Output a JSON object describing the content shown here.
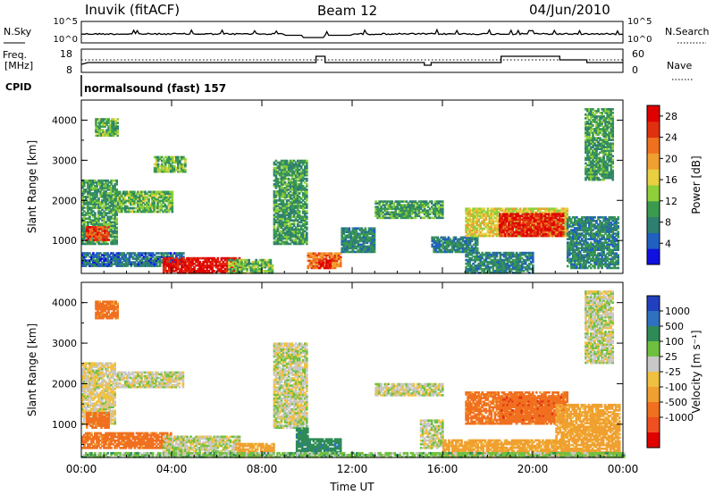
{
  "header": {
    "station": "Inuvik (fitACF)",
    "beam": "Beam 12",
    "date": "04/Jun/2010"
  },
  "noise_panel": {
    "left_label": "N.Sky",
    "right_label": "N.Search",
    "tick_top": "10^5",
    "tick_bottom": "10^0"
  },
  "freq_panel": {
    "label_line1": "Freq.",
    "label_line2": "[MHz]",
    "tick_top": "18",
    "tick_bottom": "8",
    "right_label": "Nave",
    "right_tick_top": "60",
    "right_tick_bottom": "0"
  },
  "cpid": {
    "label": "CPID",
    "value": "normalsound (fast) 157"
  },
  "colors": {
    "power_scale": [
      "#1010e0",
      "#2060c0",
      "#2f7f70",
      "#3a9a50",
      "#8fcf3a",
      "#e8d040",
      "#f0a030",
      "#f07020",
      "#e03010",
      "#e00000"
    ],
    "velocity_scale": [
      "#2040c0",
      "#3070c0",
      "#2e8b57",
      "#70c040",
      "#c8c8c8",
      "#c8c8c8",
      "#f0c040",
      "#f08030",
      "#f05020",
      "#e00000"
    ]
  },
  "chart_data": [
    {
      "type": "heatmap",
      "title": "Power",
      "xlabel": "Time UT",
      "ylabel": "Slant Range [km]",
      "x_ticks": [
        "00:00",
        "04:00",
        "08:00",
        "12:00",
        "16:00",
        "20:00",
        "00:00"
      ],
      "xlim_hours": [
        0,
        24
      ],
      "y_ticks": [
        "1000",
        "2000",
        "3000",
        "4000"
      ],
      "ylim": [
        180,
        4500
      ],
      "colorbar": {
        "label": "Power [dB]",
        "ticks": [
          "4",
          "8",
          "12",
          "16",
          "20",
          "24",
          "28"
        ],
        "range": [
          0,
          30
        ]
      },
      "regions": [
        {
          "t": [
            0.0,
            1.6
          ],
          "r": [
            900,
            2500
          ],
          "level": 10
        },
        {
          "t": [
            0.2,
            1.2
          ],
          "r": [
            1000,
            1350
          ],
          "level": 25
        },
        {
          "t": [
            0.0,
            4.5
          ],
          "r": [
            350,
            700
          ],
          "level": 6
        },
        {
          "t": [
            1.5,
            4.0
          ],
          "r": [
            1700,
            2200
          ],
          "level": 12
        },
        {
          "t": [
            0.6,
            1.6
          ],
          "r": [
            3600,
            4050
          ],
          "level": 12
        },
        {
          "t": [
            3.2,
            4.6
          ],
          "r": [
            2700,
            3100
          ],
          "level": 12
        },
        {
          "t": [
            3.6,
            7.0
          ],
          "r": [
            180,
            550
          ],
          "level": 28
        },
        {
          "t": [
            6.5,
            8.5
          ],
          "r": [
            180,
            500
          ],
          "level": 12
        },
        {
          "t": [
            8.5,
            10.0
          ],
          "r": [
            900,
            3000
          ],
          "level": 10
        },
        {
          "t": [
            10.0,
            11.5
          ],
          "r": [
            300,
            700
          ],
          "level": 22
        },
        {
          "t": [
            10.5,
            11.0
          ],
          "r": [
            300,
            500
          ],
          "level": 29
        },
        {
          "t": [
            11.5,
            13.0
          ],
          "r": [
            700,
            1300
          ],
          "level": 8
        },
        {
          "t": [
            13.0,
            16.0
          ],
          "r": [
            1550,
            2000
          ],
          "level": 10
        },
        {
          "t": [
            15.5,
            17.5
          ],
          "r": [
            700,
            1100
          ],
          "level": 8
        },
        {
          "t": [
            17.0,
            21.5
          ],
          "r": [
            1100,
            1800
          ],
          "level": 16
        },
        {
          "t": [
            18.5,
            21.3
          ],
          "r": [
            1100,
            1650
          ],
          "level": 27
        },
        {
          "t": [
            17.0,
            20.0
          ],
          "r": [
            180,
            700
          ],
          "level": 8
        },
        {
          "t": [
            21.5,
            23.8
          ],
          "r": [
            300,
            1600
          ],
          "level": 8
        },
        {
          "t": [
            22.3,
            23.5
          ],
          "r": [
            2500,
            4300
          ],
          "level": 10
        }
      ]
    },
    {
      "type": "heatmap",
      "title": "Velocity",
      "xlabel": "Time UT",
      "ylabel": "Slant Range [km]",
      "x_ticks": [
        "00:00",
        "04:00",
        "08:00",
        "12:00",
        "16:00",
        "20:00",
        "00:00"
      ],
      "xlim_hours": [
        0,
        24
      ],
      "y_ticks": [
        "1000",
        "2000",
        "3000",
        "4000"
      ],
      "ylim": [
        180,
        4500
      ],
      "colorbar": {
        "label": "Velocity [m s^-1]",
        "ticks": [
          "1000",
          "500",
          "100",
          "25",
          "-25",
          "-100",
          "-500",
          "-1000"
        ]
      },
      "regions": [
        {
          "t": [
            0.0,
            1.5
          ],
          "r": [
            1000,
            2500
          ],
          "level": -25
        },
        {
          "t": [
            0.2,
            1.2
          ],
          "r": [
            900,
            1300
          ],
          "level": -300
        },
        {
          "t": [
            0.0,
            4.0
          ],
          "r": [
            400,
            800
          ],
          "level": -300
        },
        {
          "t": [
            1.5,
            4.5
          ],
          "r": [
            1900,
            2300
          ],
          "level": 0
        },
        {
          "t": [
            0.6,
            1.6
          ],
          "r": [
            3600,
            4050
          ],
          "level": -300
        },
        {
          "t": [
            3.6,
            7.0
          ],
          "r": [
            180,
            700
          ],
          "level": 0
        },
        {
          "t": [
            6.8,
            8.5
          ],
          "r": [
            180,
            500
          ],
          "level": -150
        },
        {
          "t": [
            8.5,
            10.0
          ],
          "r": [
            900,
            3000
          ],
          "level": 0
        },
        {
          "t": [
            9.5,
            10.0
          ],
          "r": [
            200,
            900
          ],
          "level": 200
        },
        {
          "t": [
            10.0,
            11.5
          ],
          "r": [
            250,
            650
          ],
          "level": 200
        },
        {
          "t": [
            13.0,
            16.0
          ],
          "r": [
            1700,
            2000
          ],
          "level": 0
        },
        {
          "t": [
            15.0,
            16.0
          ],
          "r": [
            400,
            1100
          ],
          "level": 0
        },
        {
          "t": [
            17.0,
            21.5
          ],
          "r": [
            1000,
            1800
          ],
          "level": -300
        },
        {
          "t": [
            18.5,
            21.3
          ],
          "r": [
            1100,
            1650
          ],
          "level": -450
        },
        {
          "t": [
            16.0,
            21.0
          ],
          "r": [
            180,
            600
          ],
          "level": -150
        },
        {
          "t": [
            21.0,
            23.8
          ],
          "r": [
            200,
            1500
          ],
          "level": -150
        },
        {
          "t": [
            22.3,
            23.5
          ],
          "r": [
            2500,
            4300
          ],
          "level": 0
        },
        {
          "t": [
            0.0,
            24.0
          ],
          "r": [
            180,
            300
          ],
          "level": 60
        }
      ]
    }
  ]
}
